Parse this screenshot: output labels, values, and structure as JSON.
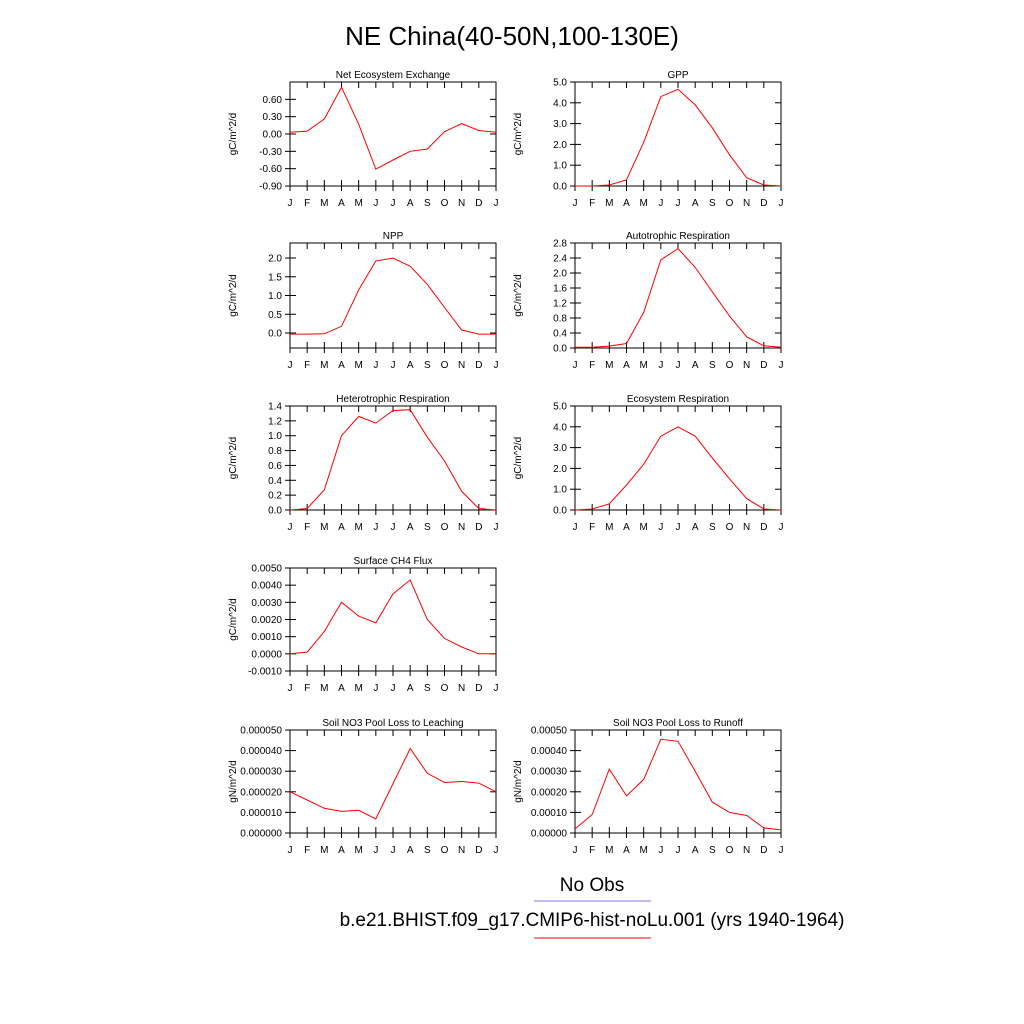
{
  "title": "NE China(40-50N,100-130E)",
  "legend": {
    "obs_label": "No Obs",
    "obs_color": "#7b7bea",
    "model_label": "b.e21.BHIST.f09_g17.CMIP6-hist-noLu.001 (yrs 1940-1964)",
    "model_color": "#ff0000"
  },
  "line_color": "#ff0000",
  "chart_data": [
    {
      "type": "line",
      "title": "Net Ecosystem Exchange",
      "ylabel": "gC/m^2/d",
      "x": [
        "J",
        "F",
        "M",
        "A",
        "M",
        "J",
        "J",
        "A",
        "S",
        "O",
        "N",
        "D",
        "J"
      ],
      "ylim": [
        -0.9,
        0.9
      ],
      "yticks": [
        "-0.90",
        "-0.60",
        "-0.30",
        "0.00",
        "0.30",
        "0.60"
      ],
      "values": [
        0.03,
        0.05,
        0.26,
        0.81,
        0.17,
        -0.61,
        -0.45,
        -0.3,
        -0.26,
        0.04,
        0.18,
        0.06,
        0.03
      ]
    },
    {
      "type": "line",
      "title": "GPP",
      "ylabel": "gC/m^2/d",
      "x": [
        "J",
        "F",
        "M",
        "A",
        "M",
        "J",
        "J",
        "A",
        "S",
        "O",
        "N",
        "D",
        "J"
      ],
      "ylim": [
        0.0,
        5.0
      ],
      "yticks": [
        "0.0",
        "1.0",
        "2.0",
        "3.0",
        "4.0",
        "5.0"
      ],
      "values": [
        0.0,
        0.0,
        0.05,
        0.3,
        2.1,
        4.3,
        4.65,
        3.9,
        2.8,
        1.5,
        0.4,
        0.05,
        0.0
      ]
    },
    {
      "type": "line",
      "title": "NPP",
      "ylabel": "gC/m^2/d",
      "x": [
        "J",
        "F",
        "M",
        "A",
        "M",
        "J",
        "J",
        "A",
        "S",
        "O",
        "N",
        "D",
        "J"
      ],
      "ylim": [
        -0.4,
        2.4
      ],
      "yticks": [
        "0.0",
        "0.5",
        "1.0",
        "1.5",
        "2.0"
      ],
      "values": [
        -0.03,
        -0.03,
        -0.02,
        0.18,
        1.15,
        1.92,
        2.0,
        1.78,
        1.3,
        0.68,
        0.08,
        -0.03,
        -0.03
      ]
    },
    {
      "type": "line",
      "title": "Autotrophic Respiration",
      "ylabel": "gC/m^2/d",
      "x": [
        "J",
        "F",
        "M",
        "A",
        "M",
        "J",
        "J",
        "A",
        "S",
        "O",
        "N",
        "D",
        "J"
      ],
      "ylim": [
        0.0,
        2.8
      ],
      "yticks": [
        "0.0",
        "0.4",
        "0.8",
        "1.2",
        "1.6",
        "2.0",
        "2.4",
        "2.8"
      ],
      "values": [
        0.02,
        0.02,
        0.05,
        0.12,
        0.95,
        2.35,
        2.65,
        2.15,
        1.5,
        0.85,
        0.3,
        0.06,
        0.02
      ]
    },
    {
      "type": "line",
      "title": "Heterotrophic Respiration",
      "ylabel": "gC/m^2/d",
      "x": [
        "J",
        "F",
        "M",
        "A",
        "M",
        "J",
        "J",
        "A",
        "S",
        "O",
        "N",
        "D",
        "J"
      ],
      "ylim": [
        0.0,
        1.4
      ],
      "yticks": [
        "0.0",
        "0.2",
        "0.4",
        "0.6",
        "0.8",
        "1.0",
        "1.2",
        "1.4"
      ],
      "values": [
        0.0,
        0.02,
        0.27,
        1.0,
        1.26,
        1.17,
        1.34,
        1.35,
        0.98,
        0.66,
        0.25,
        0.02,
        0.0
      ]
    },
    {
      "type": "line",
      "title": "Ecosystem Respiration",
      "ylabel": "gC/m^2/d",
      "x": [
        "J",
        "F",
        "M",
        "A",
        "M",
        "J",
        "J",
        "A",
        "S",
        "O",
        "N",
        "D",
        "J"
      ],
      "ylim": [
        0.0,
        5.0
      ],
      "yticks": [
        "0.0",
        "1.0",
        "2.0",
        "3.0",
        "4.0",
        "5.0"
      ],
      "values": [
        0.0,
        0.05,
        0.3,
        1.2,
        2.2,
        3.55,
        4.0,
        3.55,
        2.5,
        1.5,
        0.55,
        0.05,
        0.0
      ]
    },
    {
      "type": "line",
      "title": "Surface CH4 Flux",
      "ylabel": "gC/m^2/d",
      "x": [
        "J",
        "F",
        "M",
        "A",
        "M",
        "J",
        "J",
        "A",
        "S",
        "O",
        "N",
        "D",
        "J"
      ],
      "ylim": [
        -0.001,
        0.005
      ],
      "yticks": [
        "-0.0010",
        "0.0000",
        "0.0010",
        "0.0020",
        "0.0030",
        "0.0040",
        "0.0050"
      ],
      "values": [
        0.0,
        0.0001,
        0.0013,
        0.003,
        0.0022,
        0.0018,
        0.0035,
        0.0043,
        0.002,
        0.0009,
        0.0004,
        0.0,
        0.0
      ]
    },
    {
      "type": "line",
      "title": "Soil NO3 Pool Loss to Leaching",
      "ylabel": "gN/m^2/d",
      "x": [
        "J",
        "F",
        "M",
        "A",
        "M",
        "J",
        "J",
        "A",
        "S",
        "O",
        "N",
        "D",
        "J"
      ],
      "ylim": [
        0.0,
        5e-05
      ],
      "yticks": [
        "0.000000",
        "0.000010",
        "0.000020",
        "0.000030",
        "0.000040",
        "0.000050"
      ],
      "values": [
        2e-05,
        1.6e-05,
        1.2e-05,
        1.05e-05,
        1.1e-05,
        6.8e-06,
        2.4e-05,
        4.1e-05,
        2.9e-05,
        2.45e-05,
        2.5e-05,
        2.42e-05,
        2e-05
      ]
    },
    {
      "type": "line",
      "title": "Soil NO3 Pool Loss to Runoff",
      "ylabel": "gN/m^2/d",
      "x": [
        "J",
        "F",
        "M",
        "A",
        "M",
        "J",
        "J",
        "A",
        "S",
        "O",
        "N",
        "D",
        "J"
      ],
      "ylim": [
        0.0,
        0.0005
      ],
      "yticks": [
        "0.00000",
        "0.00010",
        "0.00020",
        "0.00030",
        "0.00040",
        "0.00050"
      ],
      "values": [
        2e-05,
        9e-05,
        0.00031,
        0.00018,
        0.00026,
        0.000455,
        0.000445,
        0.0003,
        0.00015,
        0.0001,
        8.5e-05,
        2.5e-05,
        1.5e-05
      ]
    }
  ]
}
